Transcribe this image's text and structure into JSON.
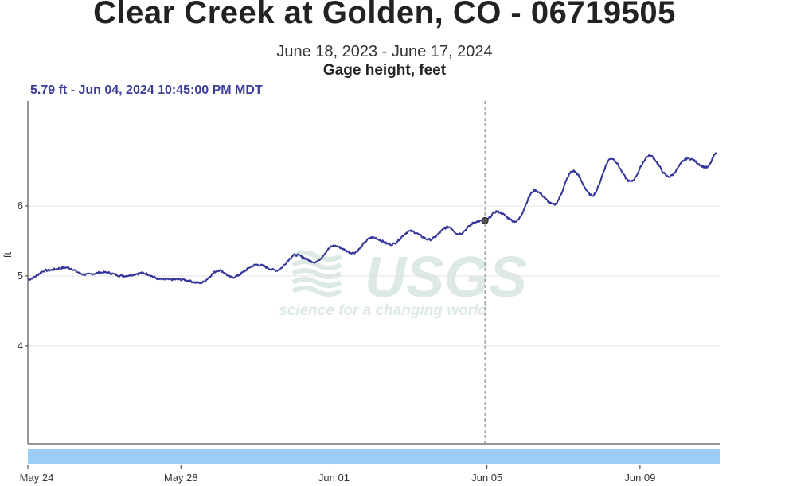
{
  "header": {
    "title": "Clear Creek at Golden, CO - 06719505",
    "date_range": "June 18, 2023 - June 17, 2024",
    "parameter": "Gage height, feet",
    "readout": "5.79 ft - Jun 04, 2024 10:45:00 PM MDT"
  },
  "watermark": {
    "logo_text": "USGS",
    "tagline": "science for a changing world"
  },
  "colors": {
    "series": "#33349a",
    "grid": "#e3e3e3",
    "brush": "#9ccdf6",
    "cursor": "#777777",
    "watermark": "#dde9e3"
  },
  "chart_data": {
    "type": "line",
    "title": "Clear Creek at Golden, CO - 06719505",
    "subtitle": "June 18, 2023 - June 17, 2024",
    "ylabel": "ft",
    "xlabel": "",
    "x_range": [
      "2024-05-24",
      "2024-06-11"
    ],
    "ylim": [
      2.6,
      7.5
    ],
    "y_ticks": [
      4,
      5,
      6
    ],
    "y_tick_labels": [
      "4",
      "5",
      "6"
    ],
    "x_ticks": [
      "2024-05-24",
      "2024-05-28",
      "2024-06-01",
      "2024-06-05",
      "2024-06-09"
    ],
    "x_tick_labels": [
      "May 24",
      "May 28",
      "Jun 01",
      "Jun 05",
      "Jun 09"
    ],
    "grid": true,
    "cursor": {
      "x": "2024-06-04 22:45",
      "y": 5.79
    },
    "series": [
      {
        "points": [
          [
            "2024-05-24 00:00",
            4.95
          ],
          [
            "2024-05-24 12:00",
            5.08
          ],
          [
            "2024-05-25 00:00",
            5.12
          ],
          [
            "2024-05-25 12:00",
            5.02
          ],
          [
            "2024-05-26 00:00",
            5.05
          ],
          [
            "2024-05-26 12:00",
            5.0
          ],
          [
            "2024-05-27 00:00",
            5.04
          ],
          [
            "2024-05-27 12:00",
            4.95
          ],
          [
            "2024-05-28 00:00",
            4.95
          ],
          [
            "2024-05-28 12:00",
            4.9
          ],
          [
            "2024-05-29 00:00",
            5.08
          ],
          [
            "2024-05-29 08:00",
            4.98
          ],
          [
            "2024-05-30 00:00",
            5.16
          ],
          [
            "2024-05-30 12:00",
            5.08
          ],
          [
            "2024-05-31 00:00",
            5.3
          ],
          [
            "2024-05-31 12:00",
            5.2
          ],
          [
            "2024-06-01 00:00",
            5.43
          ],
          [
            "2024-06-01 12:00",
            5.33
          ],
          [
            "2024-06-02 00:00",
            5.55
          ],
          [
            "2024-06-02 12:00",
            5.45
          ],
          [
            "2024-06-03 00:00",
            5.64
          ],
          [
            "2024-06-03 12:00",
            5.52
          ],
          [
            "2024-06-04 00:00",
            5.7
          ],
          [
            "2024-06-04 06:00",
            5.6
          ],
          [
            "2024-06-04 18:00",
            5.78
          ],
          [
            "2024-06-04 22:45",
            5.79
          ],
          [
            "2024-06-05 06:00",
            5.92
          ],
          [
            "2024-06-05 18:00",
            5.78
          ],
          [
            "2024-06-06 06:00",
            6.22
          ],
          [
            "2024-06-06 18:00",
            6.02
          ],
          [
            "2024-06-07 06:00",
            6.5
          ],
          [
            "2024-06-07 18:00",
            6.15
          ],
          [
            "2024-06-08 06:00",
            6.68
          ],
          [
            "2024-06-08 18:00",
            6.35
          ],
          [
            "2024-06-09 06:00",
            6.72
          ],
          [
            "2024-06-09 18:00",
            6.42
          ],
          [
            "2024-06-10 06:00",
            6.68
          ],
          [
            "2024-06-10 18:00",
            6.55
          ],
          [
            "2024-06-11 00:00",
            6.75
          ]
        ]
      }
    ]
  }
}
